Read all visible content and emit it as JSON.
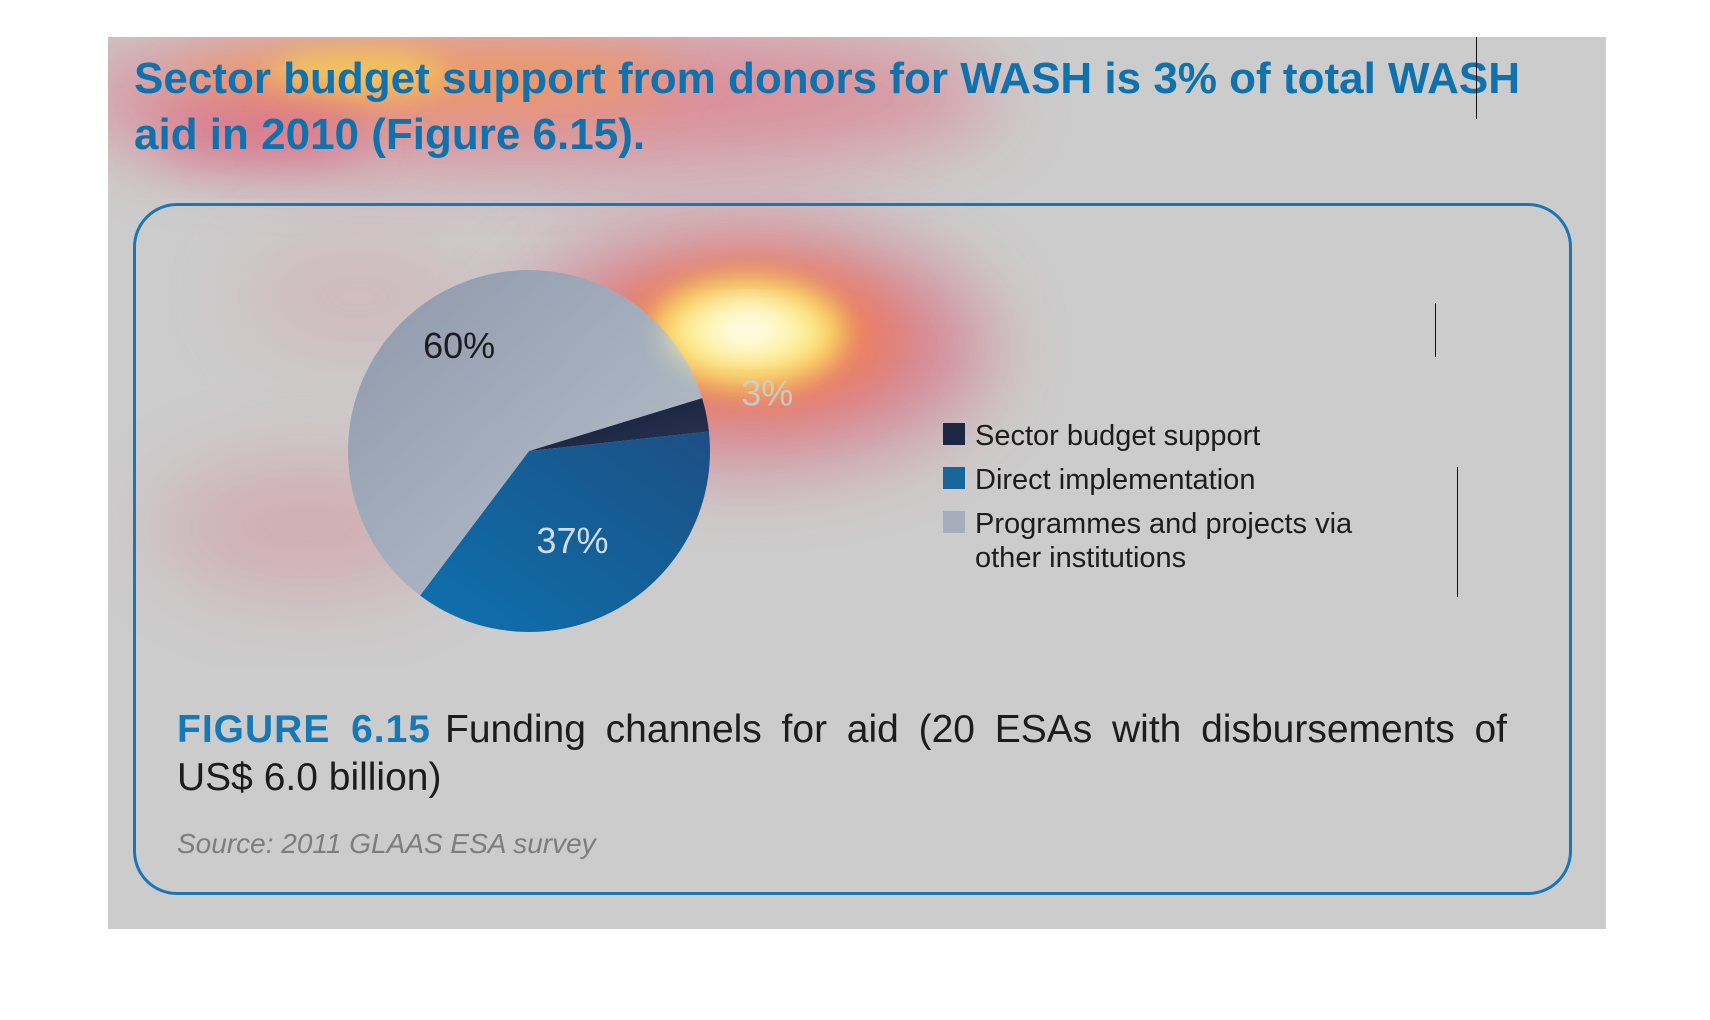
{
  "headline": {
    "part1": "Sector budget support from donors for WASH is 3% of total WASH",
    "part2": "aid in 2010 (Figure 6.15)."
  },
  "figure": {
    "label": "FIGURE 6.15",
    "caption": "Funding channels for aid (20 ESAs with disbursements of US$ 6.0 billion)",
    "source": "Source: 2011 GLAAS ESA survey"
  },
  "chart_data": {
    "type": "pie",
    "title": "",
    "categories": [
      "Sector budget support",
      "Direct implementation",
      "Programmes and projects via other institutions"
    ],
    "values": [
      3,
      37,
      60
    ],
    "labels": [
      "3%",
      "37%",
      "60%"
    ],
    "unit": "%",
    "legend_position": "right",
    "colors": [
      "#1c2741",
      "#1a659c",
      "#a4aebc"
    ]
  },
  "legend": {
    "items": [
      {
        "label": "Sector budget support",
        "color": "#1c2741"
      },
      {
        "label": "Direct implementation",
        "color": "#1a659c"
      },
      {
        "label": "Programmes and projects via other institutions",
        "color": "#a4aebc"
      }
    ]
  },
  "overlay": {
    "type": "attention heatmap",
    "hot_color": "#fff38a"
  }
}
